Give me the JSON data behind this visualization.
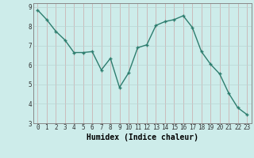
{
  "xlabel": "Humidex (Indice chaleur)",
  "x": [
    0,
    1,
    2,
    3,
    4,
    5,
    6,
    7,
    8,
    9,
    10,
    11,
    12,
    13,
    14,
    15,
    16,
    17,
    18,
    19,
    20,
    21,
    22,
    23
  ],
  "y": [
    8.85,
    8.35,
    7.75,
    7.3,
    6.65,
    6.65,
    6.7,
    5.75,
    6.35,
    4.85,
    5.6,
    6.9,
    7.05,
    8.05,
    8.25,
    8.35,
    8.55,
    7.95,
    6.7,
    6.05,
    5.55,
    4.55,
    3.8,
    3.45
  ],
  "line_color": "#2d7d6e",
  "marker_color": "#2d7d6e",
  "bg_color": "#cdecea",
  "plot_bg_color": "#cdecea",
  "grid_color_v": "#c9a8a8",
  "grid_color_h": "#b8d4d2",
  "ylim": [
    3,
    9.2
  ],
  "xlim": [
    -0.5,
    23.5
  ],
  "yticks": [
    3,
    4,
    5,
    6,
    7,
    8,
    9
  ],
  "xticks": [
    0,
    1,
    2,
    3,
    4,
    5,
    6,
    7,
    8,
    9,
    10,
    11,
    12,
    13,
    14,
    15,
    16,
    17,
    18,
    19,
    20,
    21,
    22,
    23
  ],
  "tick_fontsize": 5.5,
  "label_fontsize": 7.0,
  "marker": "+",
  "markersize": 3.5,
  "linewidth": 1.0
}
